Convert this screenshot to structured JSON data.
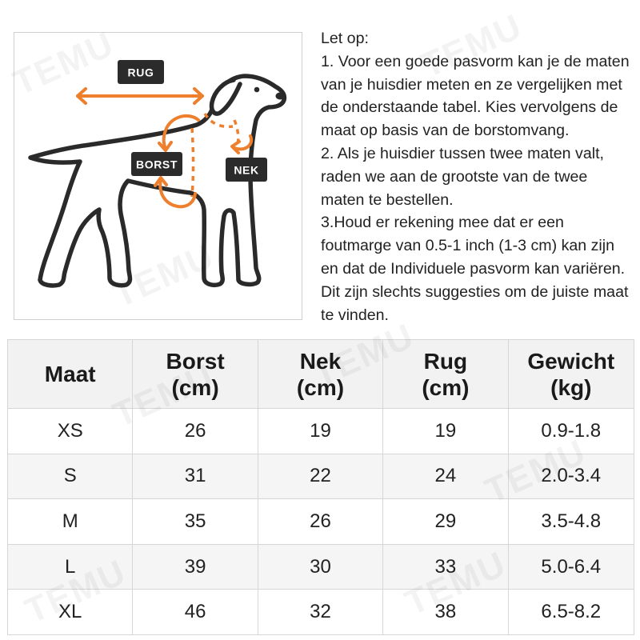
{
  "colors": {
    "accent": "#EE7F2D",
    "label_background": "#2B2B2B",
    "outline": "#2A2A2A",
    "header_background": "#F2F2F2",
    "stripe_background": "#F5F5F5",
    "grid_line": "#D6D6D6"
  },
  "watermark": "TEMU",
  "diagram": {
    "labels": {
      "back": "RUG",
      "chest": "BORST",
      "neck": "NEK"
    }
  },
  "notes": {
    "lines": [
      "Let op:",
      "1. Voor een goede pasvorm kan je de maten",
      "van je huisdier meten en ze vergelijken met",
      "de onderstaande tabel. Kies vervolgens de",
      "maat op basis van de borstomvang.",
      "2. Als je huisdier tussen twee maten valt,",
      "raden we aan de grootste van de twee",
      "maten te bestellen.",
      "3.Houd er rekening mee dat er een",
      "foutmarge van 0.5-1 inch (1-3 cm) kan zijn",
      "en dat de Individuele pasvorm kan variëren.",
      "Dit zijn slechts suggesties om de juiste maat",
      "te vinden."
    ]
  },
  "table": {
    "headers": [
      {
        "name": "Maat"
      },
      {
        "name": "Borst",
        "unit": "(cm)"
      },
      {
        "name": "Nek",
        "unit": "(cm)"
      },
      {
        "name": "Rug",
        "unit": "(cm)"
      },
      {
        "name": "Gewicht",
        "unit": "(kg)"
      }
    ],
    "rows": [
      [
        "XS",
        "26",
        "19",
        "19",
        "0.9-1.8"
      ],
      [
        "S",
        "31",
        "22",
        "24",
        "2.0-3.4"
      ],
      [
        "M",
        "35",
        "26",
        "29",
        "3.5-4.8"
      ],
      [
        "L",
        "39",
        "30",
        "33",
        "5.0-6.4"
      ],
      [
        "XL",
        "46",
        "32",
        "38",
        "6.5-8.2"
      ]
    ]
  }
}
